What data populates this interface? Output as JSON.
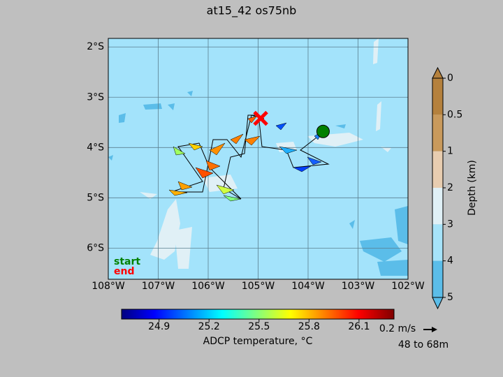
{
  "title": "at15_42 os75nb",
  "map": {
    "xlim": [
      -108,
      -102
    ],
    "ylim": [
      -6.62,
      -1.83
    ],
    "xticks": [
      {
        "value": -108,
        "label": "108°W"
      },
      {
        "value": -107,
        "label": "107°W"
      },
      {
        "value": -106,
        "label": "106°W"
      },
      {
        "value": -105,
        "label": "105°W"
      },
      {
        "value": -104,
        "label": "104°W"
      },
      {
        "value": -103,
        "label": "103°W"
      },
      {
        "value": -102,
        "label": "102°W"
      }
    ],
    "yticks": [
      {
        "value": -2,
        "label": "2°S"
      },
      {
        "value": -3,
        "label": "3°S"
      },
      {
        "value": -4,
        "label": "4°S"
      },
      {
        "value": -5,
        "label": "5°S"
      },
      {
        "value": -6,
        "label": "6°S"
      }
    ],
    "grid": true,
    "ocean_color": "#a3e3fb",
    "start_point": [
      -103.7,
      -3.68
    ],
    "end_point": [
      -104.95,
      -3.42
    ],
    "start_color": "#008000",
    "end_color": "#ff0000"
  },
  "legend": {
    "start": "start",
    "end": "end"
  },
  "depth_colorbar": {
    "label": "Depth (km)",
    "ticks": [
      0,
      0.5,
      1,
      2,
      3,
      4,
      5
    ],
    "colors": [
      "#b5813d",
      "#c99a5c",
      "#e8cdb0",
      "#e0f0f6",
      "#a6e3f9",
      "#5bbde9"
    ]
  },
  "temperature_colorbar": {
    "label": "ADCP temperature, °C",
    "xlim": [
      24.675,
      26.31
    ],
    "xticks": [
      24.9,
      25.2,
      25.5,
      25.8,
      26.1
    ]
  },
  "reference_arrow": {
    "label": "0.2 m/s",
    "depth": "48 to 68m"
  }
}
